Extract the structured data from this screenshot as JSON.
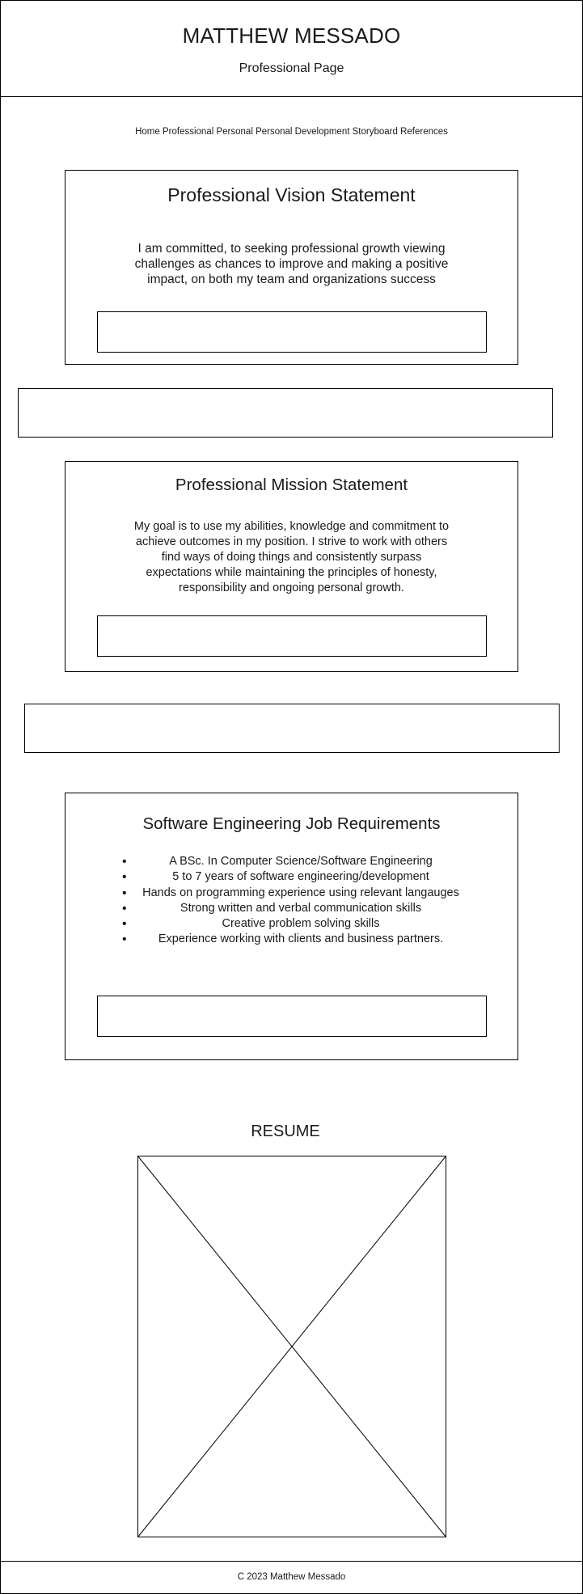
{
  "header": {
    "name": "MATTHEW MESSADO",
    "subtitle": "Professional Page"
  },
  "nav": {
    "items": [
      "Home",
      "Professional",
      "Personal",
      "Personal Development",
      "Storyboard",
      "References"
    ]
  },
  "vision": {
    "title": "Professional Vision Statement",
    "lines": [
      "I am committed, to seeking professional growth viewing",
      "challenges as chances to improve and making a positive",
      "impact, on both my team and organizations success"
    ]
  },
  "mission": {
    "title": "Professional Mission Statement",
    "lines": [
      "My goal is to use my abilities, knowledge and commitment to",
      "achieve outcomes in my position. I strive to work with others",
      "find ways of doing things and consistently surpass",
      "expectations while maintaining the principles of honesty,",
      "responsibility and ongoing personal growth."
    ]
  },
  "jobs": {
    "title": "Software Engineering Job Requirements",
    "items": [
      "A BSc. In Computer Science/Software Engineering",
      "5 to 7 years of software engineering/development",
      "Hands on programming experience using relevant langauges",
      "Strong written and verbal communication skills",
      "Creative problem solving skills",
      "Experience working with clients and business partners."
    ]
  },
  "resume": {
    "title": "RESUME"
  },
  "footer": {
    "text": "C 2023 Matthew Messado"
  }
}
